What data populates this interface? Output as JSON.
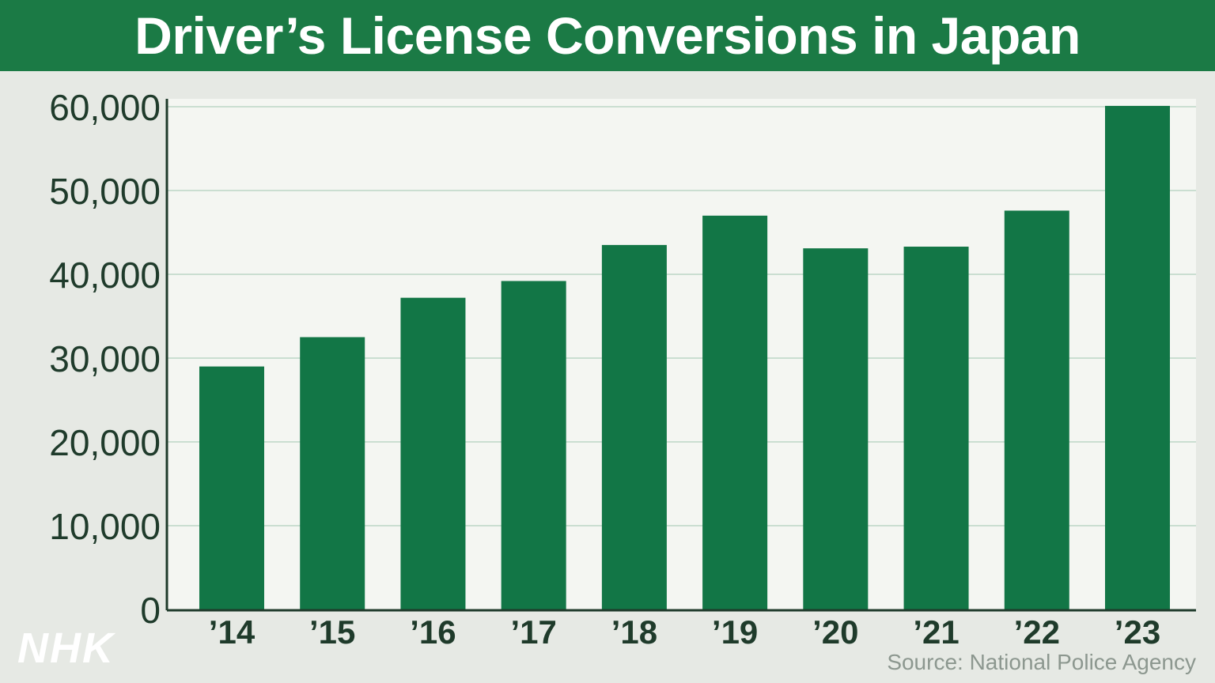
{
  "title": "Driver’s License Conversions in Japan",
  "source": "Source: National Police Agency",
  "logo": "NHK",
  "colors": {
    "title_bg": "#1b7a45",
    "bar": "#127646",
    "axis_text": "#1f3b2b",
    "grid": "#9fc7b0",
    "plot_bg": "#f4f6f2"
  },
  "chart_data": {
    "type": "bar",
    "title": "Driver’s License Conversions in Japan",
    "xlabel": "",
    "ylabel": "",
    "categories": [
      "’14",
      "’15",
      "’16",
      "’17",
      "’18",
      "’19",
      "’20",
      "’21",
      "’22",
      "’23"
    ],
    "values": [
      29000,
      32500,
      37200,
      39200,
      43500,
      47000,
      43100,
      43300,
      47600,
      60100
    ],
    "ylim": [
      0,
      60000
    ],
    "yticks": [
      0,
      10000,
      20000,
      30000,
      40000,
      50000,
      60000
    ],
    "ytick_labels": [
      "0",
      "10,000",
      "20,000",
      "30,000",
      "40,000",
      "50,000",
      "60,000"
    ],
    "grid": true,
    "legend": "none"
  }
}
